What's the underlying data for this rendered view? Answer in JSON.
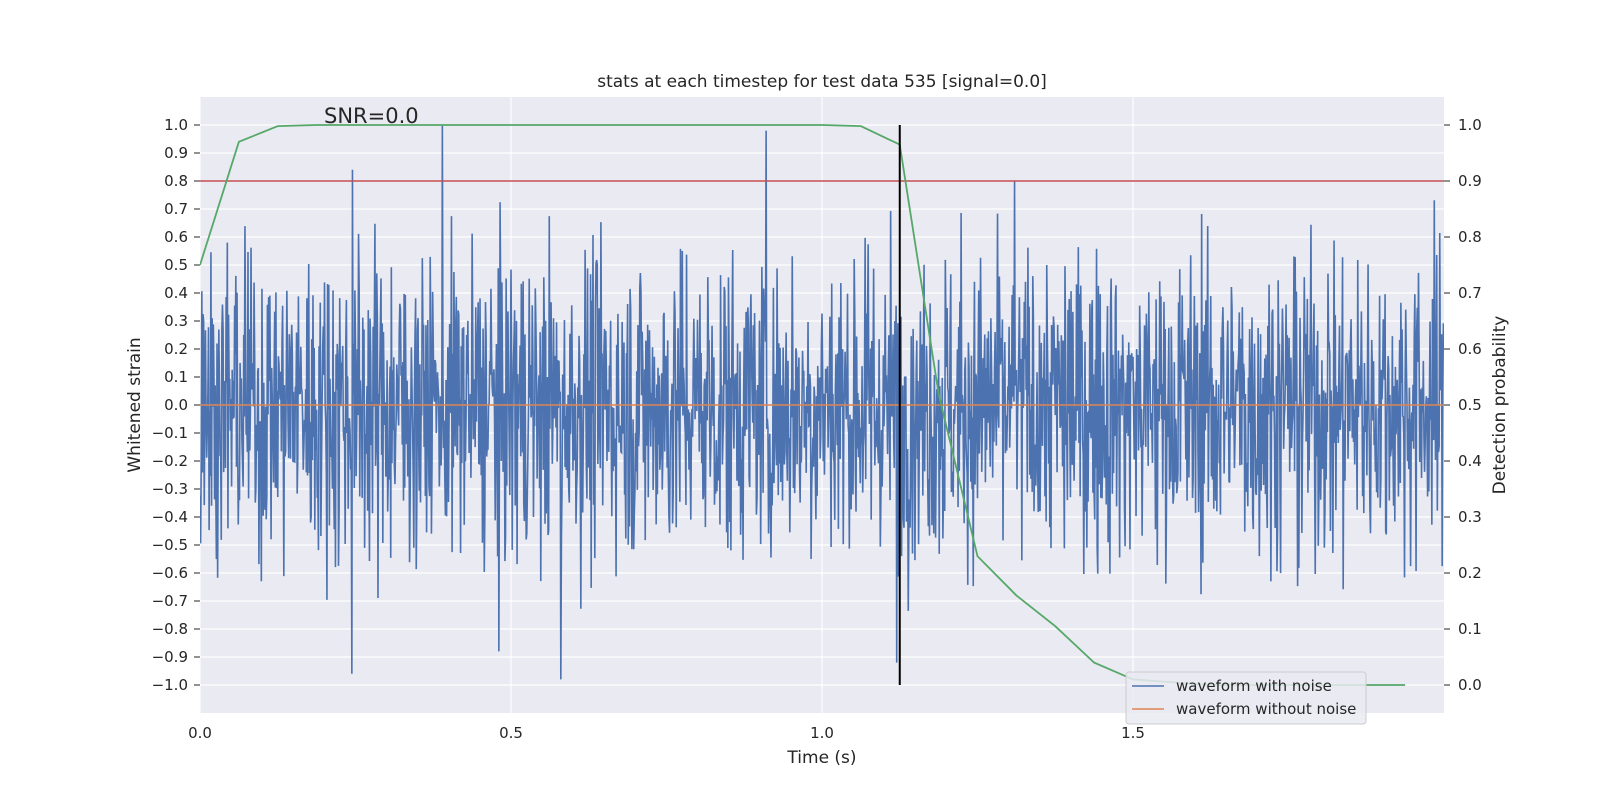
{
  "chart_data": {
    "type": "line",
    "title": "stats at each timestep for test data 535 [signal=0.0]",
    "annotation": "SNR=0.0",
    "xlabel": "Time (s)",
    "ylabel_left": "Whitened strain",
    "ylabel_right": "Detection probability",
    "xlim": [
      0.0,
      2.0
    ],
    "ylim_left": [
      -1.1,
      1.1
    ],
    "ylim_right": [
      -0.05,
      1.05
    ],
    "xticks": [
      "0.0",
      "0.5",
      "1.0",
      "1.5"
    ],
    "yticks_left": [
      "1.0",
      "0.9",
      "0.8",
      "0.7",
      "0.6",
      "0.5",
      "0.4",
      "0.3",
      "0.2",
      "0.1",
      "0.0",
      "-0.1",
      "-0.2",
      "-0.3",
      "-0.4",
      "-0.5",
      "-0.6",
      "-0.7",
      "-0.8",
      "-0.9",
      "-1.0"
    ],
    "yticks_right": [
      "1.0",
      "0.9",
      "0.8",
      "0.7",
      "0.6",
      "0.5",
      "0.4",
      "0.3",
      "0.2",
      "0.1",
      "0.0"
    ],
    "grid": true,
    "background": "#eaeaf2",
    "legend_position": "lower right",
    "series": [
      {
        "name": "waveform with noise",
        "color": "#4c72b0",
        "axis": "left",
        "kind": "noise",
        "n_samples": 2048,
        "amplitude_std": 0.27,
        "peaks": [
          [
            0.245,
            0.84
          ],
          [
            0.244,
            -0.96
          ],
          [
            0.39,
            1.0
          ],
          [
            0.91,
            0.98
          ],
          [
            0.58,
            -0.98
          ],
          [
            1.31,
            0.8
          ],
          [
            1.12,
            -0.92
          ],
          [
            0.48,
            -0.88
          ]
        ]
      },
      {
        "name": "waveform without noise",
        "color": "#dd8452",
        "axis": "left",
        "x": [
          0.0,
          2.0
        ],
        "y": [
          0.0,
          0.0
        ]
      },
      {
        "name": "detection probability",
        "color": "#55a868",
        "axis": "right",
        "x": [
          0.0,
          0.0625,
          0.125,
          0.1875,
          0.25,
          0.5,
          0.75,
          1.0,
          1.0625,
          1.125,
          1.1875,
          1.25,
          1.3125,
          1.375,
          1.4375,
          1.5,
          1.625,
          1.75,
          1.8,
          1.9375
        ],
        "y": [
          0.75,
          0.97,
          0.998,
          1.0,
          1.0,
          1.0,
          1.0,
          1.0,
          0.998,
          0.965,
          0.52,
          0.23,
          0.16,
          0.105,
          0.04,
          0.01,
          0.0,
          0.0,
          0.0,
          0.0
        ]
      }
    ],
    "threshold": {
      "axis": "left",
      "value": 0.8,
      "color": "#c44e52"
    },
    "marker_line": {
      "x": 1.125,
      "y_range": [
        -1.0,
        1.0
      ],
      "color": "#000000"
    }
  }
}
